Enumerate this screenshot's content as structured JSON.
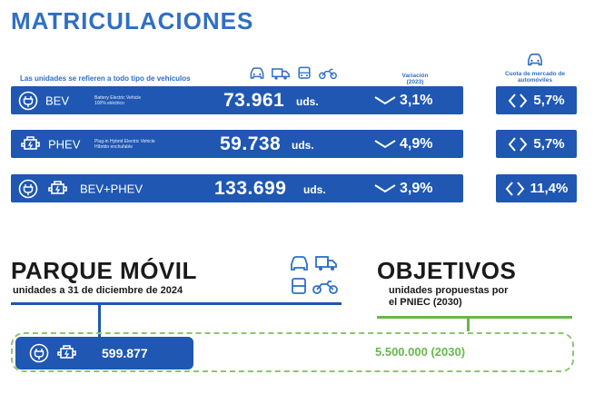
{
  "title": "MATRICULACIONES",
  "subtitle": "Las unidades se refieren a todo tipo de vehículos",
  "headers": {
    "variation": "Variación",
    "variation_year": "(2023)",
    "market_share": "Cuota de mercado de automóviles"
  },
  "vehicle_icons": [
    "car-icon",
    "truck-icon",
    "bus-icon",
    "motorcycle-icon"
  ],
  "rows": [
    {
      "label": "BEV",
      "desc_line1": "Battery Electric Vehicle",
      "desc_line2": "100% eléctrico",
      "value": "73.961",
      "unit": "uds.",
      "variation": "3,1%",
      "share": "5,7%"
    },
    {
      "label": "PHEV",
      "desc_line1": "Plug-in Hybrid Electric Vehicle",
      "desc_line2": "Híbrido enchufable",
      "value": "59.738",
      "unit": "uds.",
      "variation": "4,9%",
      "share": "5,7%"
    },
    {
      "label": "BEV+PHEV",
      "desc_line1": "",
      "desc_line2": "",
      "value": "133.699",
      "unit": "uds.",
      "variation": "3,9%",
      "share": "11,4%"
    }
  ],
  "parque": {
    "title": "PARQUE MÓVIL",
    "subtitle": "unidades a 31 de diciembre de 2024",
    "value": "599.877"
  },
  "objetivos": {
    "title": "OBJETIVOS",
    "subtitle_line1": "unidades propuestas por",
    "subtitle_line2": "el PNIEC (2030)",
    "value": "5.500.000 (2030)"
  },
  "colors": {
    "blue": "#1f57b3",
    "title_blue": "#2f6fc4",
    "green": "#67b84b",
    "dark": "#1a1a1a"
  }
}
